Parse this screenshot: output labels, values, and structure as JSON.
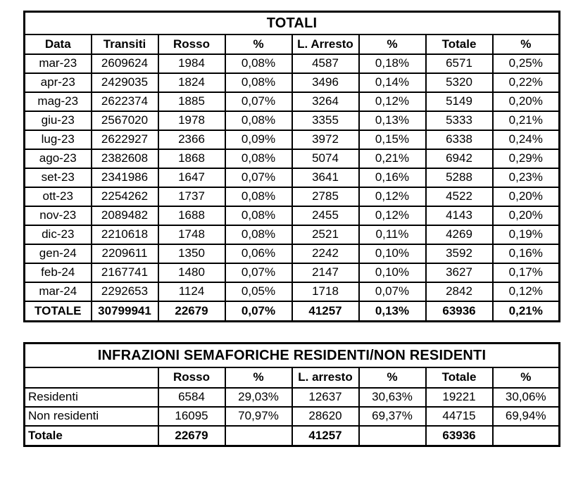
{
  "table1": {
    "title": "TOTALI",
    "columns": [
      "Data",
      "Transiti",
      "Rosso",
      "%",
      "L. Arresto",
      "%",
      "Totale",
      "%"
    ],
    "rows": [
      [
        "mar-23",
        "2609624",
        "1984",
        "0,08%",
        "4587",
        "0,18%",
        "6571",
        "0,25%"
      ],
      [
        "apr-23",
        "2429035",
        "1824",
        "0,08%",
        "3496",
        "0,14%",
        "5320",
        "0,22%"
      ],
      [
        "mag-23",
        "2622374",
        "1885",
        "0,07%",
        "3264",
        "0,12%",
        "5149",
        "0,20%"
      ],
      [
        "giu-23",
        "2567020",
        "1978",
        "0,08%",
        "3355",
        "0,13%",
        "5333",
        "0,21%"
      ],
      [
        "lug-23",
        "2622927",
        "2366",
        "0,09%",
        "3972",
        "0,15%",
        "6338",
        "0,24%"
      ],
      [
        "ago-23",
        "2382608",
        "1868",
        "0,08%",
        "5074",
        "0,21%",
        "6942",
        "0,29%"
      ],
      [
        "set-23",
        "2341986",
        "1647",
        "0,07%",
        "3641",
        "0,16%",
        "5288",
        "0,23%"
      ],
      [
        "ott-23",
        "2254262",
        "1737",
        "0,08%",
        "2785",
        "0,12%",
        "4522",
        "0,20%"
      ],
      [
        "nov-23",
        "2089482",
        "1688",
        "0,08%",
        "2455",
        "0,12%",
        "4143",
        "0,20%"
      ],
      [
        "dic-23",
        "2210618",
        "1748",
        "0,08%",
        "2521",
        "0,11%",
        "4269",
        "0,19%"
      ],
      [
        "gen-24",
        "2209611",
        "1350",
        "0,06%",
        "2242",
        "0,10%",
        "3592",
        "0,16%"
      ],
      [
        "feb-24",
        "2167741",
        "1480",
        "0,07%",
        "2147",
        "0,10%",
        "3627",
        "0,17%"
      ],
      [
        "mar-24",
        "2292653",
        "1124",
        "0,05%",
        "1718",
        "0,07%",
        "2842",
        "0,12%"
      ]
    ],
    "total_row": [
      "TOTALE",
      "30799941",
      "22679",
      "0,07%",
      "41257",
      "0,13%",
      "63936",
      "0,21%"
    ]
  },
  "table2": {
    "title": "INFRAZIONI SEMAFORICHE RESIDENTI/NON RESIDENTI",
    "columns": [
      "",
      "Rosso",
      "%",
      "L. arresto",
      "%",
      "Totale",
      "%"
    ],
    "rows": [
      [
        "Residenti",
        "6584",
        "29,03%",
        "12637",
        "30,63%",
        "19221",
        "30,06%"
      ],
      [
        "Non residenti",
        "16095",
        "70,97%",
        "28620",
        "69,37%",
        "44715",
        "69,94%"
      ]
    ],
    "total_row": [
      "Totale",
      "22679",
      "",
      "41257",
      "",
      "63936",
      ""
    ]
  }
}
